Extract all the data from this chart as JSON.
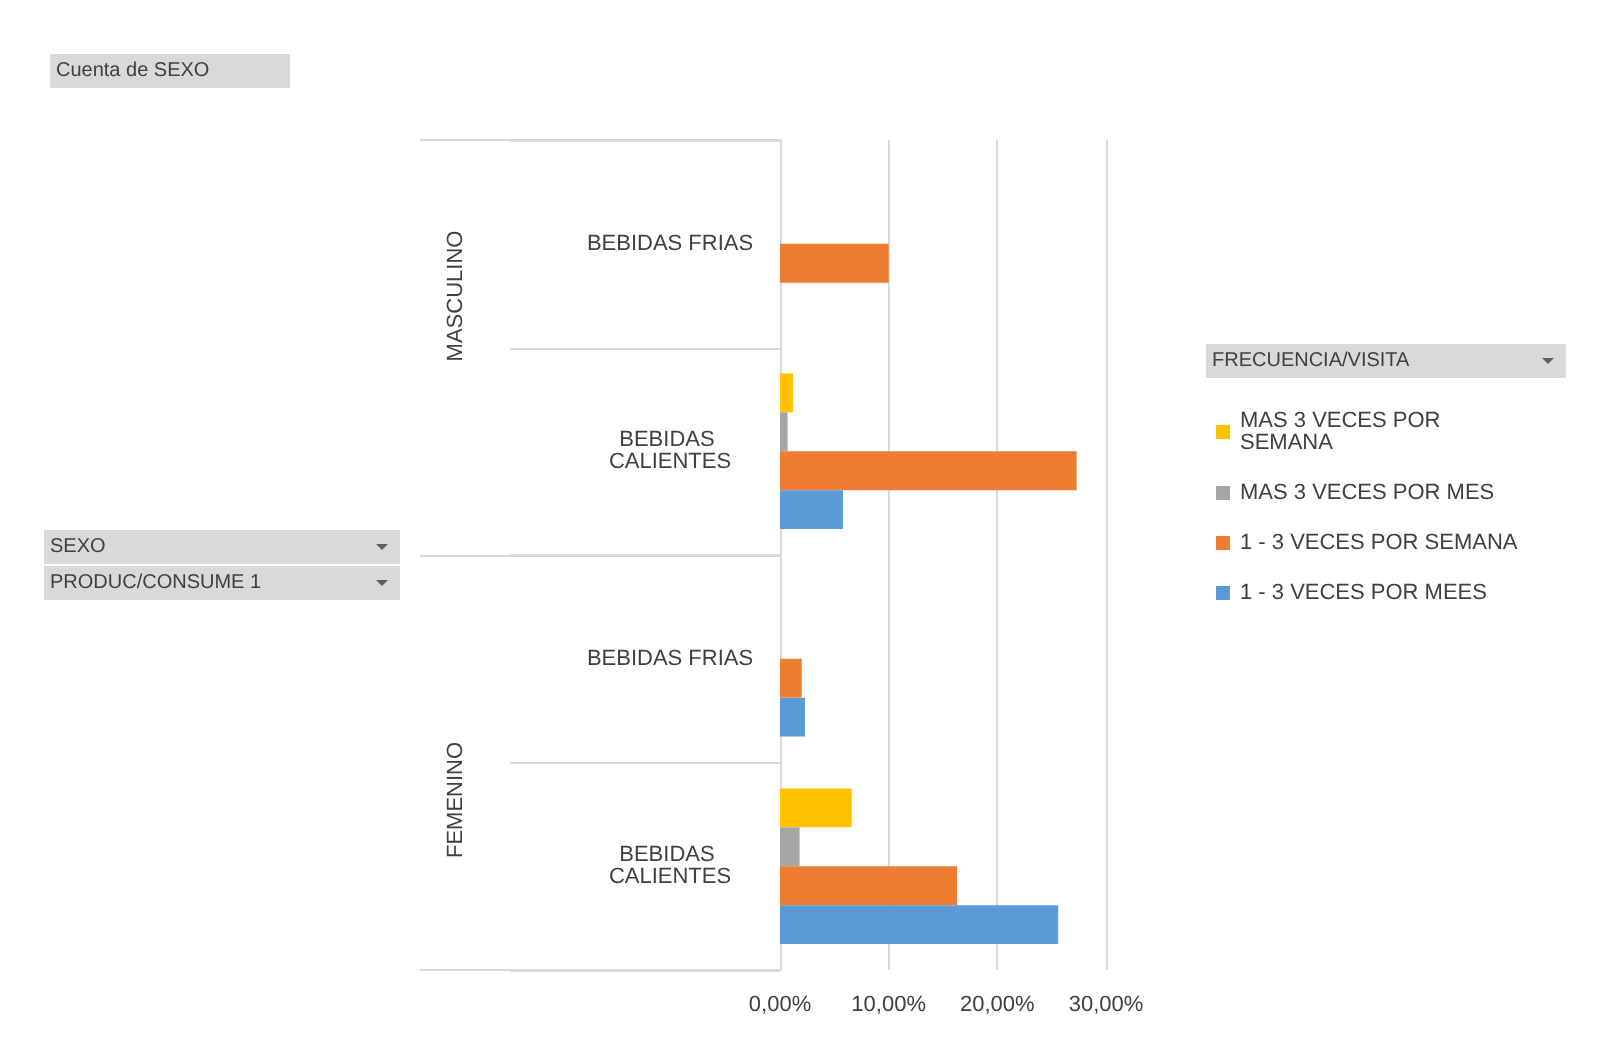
{
  "chart_data": {
    "type": "bar",
    "orientation": "horizontal",
    "legend_title": "FRECUENCIA/VISITA",
    "legend": "right",
    "categories": [
      "BEBIDAS FRIAS",
      "BEBIDAS CALIENTES",
      "BEBIDAS FRIAS",
      "BEBIDAS CALIENTES"
    ],
    "series": [
      {
        "name": "MAS 3 VECES POR SEMANA",
        "color": "#ffc000",
        "values": [
          null,
          1.2,
          null,
          6.6
        ]
      },
      {
        "name": "MAS 3 VECES POR MES",
        "color": "#a5a5a5",
        "values": [
          null,
          0.7,
          null,
          1.8
        ]
      },
      {
        "name": "1 - 3 VECES POR SEMANA",
        "color": "#ed7d31",
        "values": [
          10.0,
          27.3,
          2.0,
          16.3
        ]
      },
      {
        "name": "1 - 3 VECES POR MEES",
        "color": "#5b9bd5",
        "values": [
          null,
          5.8,
          2.3,
          25.6
        ]
      }
    ],
    "xlim": [
      0,
      30
    ],
    "xticks": [
      {
        "value": 0,
        "label": "0,00%"
      },
      {
        "value": 10,
        "label": "10,00%"
      },
      {
        "value": 20,
        "label": "20,00%"
      },
      {
        "value": 30,
        "label": "30,00%"
      }
    ],
    "grid": "x",
    "annotations": [
      "Cuenta de SEXO",
      "SEXO",
      "PRODUC/CONSUME 1",
      "MASCULINO",
      "FEMENINO"
    ]
  }
}
